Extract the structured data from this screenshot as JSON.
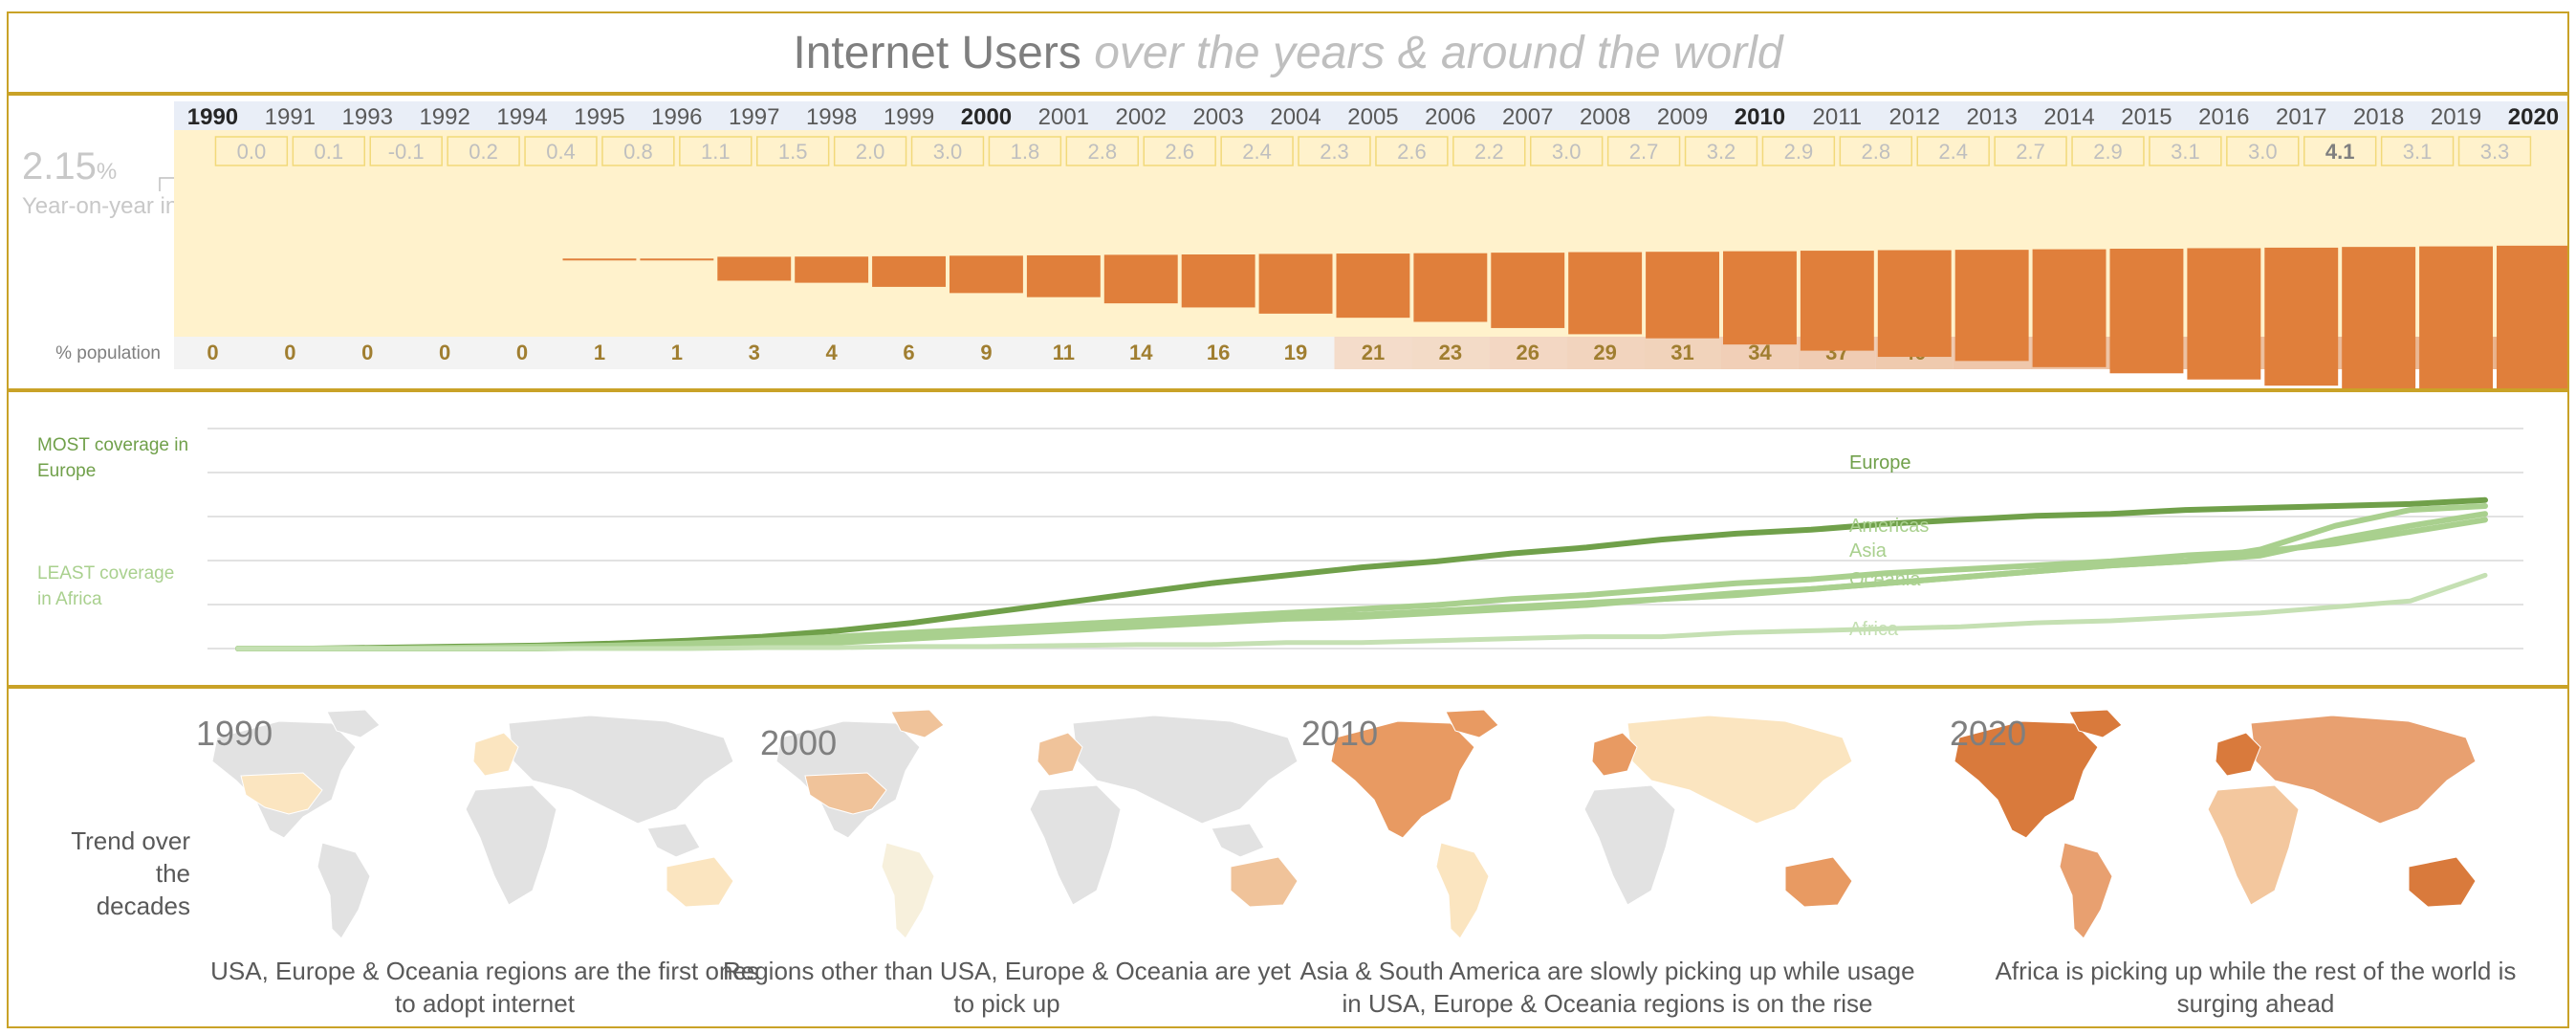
{
  "title": {
    "main": "Internet Users",
    "subtitle": "over the years & around the world"
  },
  "headline": {
    "value": "2.15",
    "unit": "%",
    "label": "Year-on-year increase"
  },
  "row_label": "% population",
  "colors": {
    "accent": "#e07f3b",
    "band": "#fff2cc",
    "header_bg": "#e9eef7",
    "frame": "#c9a227",
    "europe": "#70a04a",
    "region_light": "#a9d08e",
    "africa": "#c5e0b3"
  },
  "chart_data": [
    {
      "type": "bar",
      "title": "",
      "categories": [
        "1990",
        "1991",
        "1993",
        "1992",
        "1994",
        "1995",
        "1996",
        "1997",
        "1998",
        "1999",
        "2000",
        "2001",
        "2002",
        "2003",
        "2004",
        "2005",
        "2006",
        "2007",
        "2008",
        "2009",
        "2010",
        "2011",
        "2012",
        "2013",
        "2014",
        "2015",
        "2016",
        "2017",
        "2018",
        "2019",
        "2020"
      ],
      "bold_categories": [
        "1990",
        "2000",
        "2010",
        "2020"
      ],
      "yoy_increase": [
        "0.0",
        "0.1",
        "-0.1",
        "0.2",
        "0.4",
        "0.8",
        "1.1",
        "1.5",
        "2.0",
        "3.0",
        "1.8",
        "2.8",
        "2.6",
        "2.4",
        "2.3",
        "2.6",
        "2.2",
        "3.0",
        "2.7",
        "3.2",
        "2.9",
        "2.8",
        "2.4",
        "2.7",
        "2.9",
        "3.1",
        "3.0",
        "4.1",
        "3.1",
        "3.3"
      ],
      "yoy_highlight": "4.1",
      "values": [
        0,
        0,
        0,
        0,
        0,
        1,
        1,
        3,
        4,
        6,
        9,
        11,
        14,
        16,
        19,
        21,
        23,
        26,
        29,
        31,
        34,
        37,
        40,
        42,
        45,
        48,
        51,
        54,
        58,
        61,
        65
      ],
      "ylabel": "% population",
      "ylim": [
        0,
        65
      ]
    },
    {
      "type": "line",
      "title": "",
      "x": [
        1990,
        1991,
        1992,
        1993,
        1994,
        1995,
        1996,
        1997,
        1998,
        1999,
        2000,
        2001,
        2002,
        2003,
        2004,
        2005,
        2006,
        2007,
        2008,
        2009,
        2010,
        2011,
        2012,
        2013,
        2014,
        2015,
        2016,
        2017,
        2018,
        2019,
        2020
      ],
      "ylim": [
        0,
        100
      ],
      "grid": true,
      "series": [
        {
          "name": "Europe",
          "color": "#70a04a",
          "values": [
            0,
            0,
            0.5,
            1,
            1.5,
            2.5,
            4,
            6,
            9,
            13,
            18,
            23,
            28,
            33,
            37,
            41,
            44,
            48,
            51,
            55,
            58,
            60,
            63,
            65,
            67,
            68,
            70,
            71,
            72,
            73,
            75
          ]
        },
        {
          "name": "Americas",
          "color": "#a9d08e",
          "values": [
            0,
            0,
            0,
            0.5,
            1,
            1.5,
            2.5,
            4,
            6,
            8,
            10,
            12,
            14,
            16,
            18,
            20,
            22,
            25,
            27,
            30,
            33,
            35,
            38,
            40,
            42,
            44,
            47,
            49,
            53,
            59,
            65
          ]
        },
        {
          "name": "Asia",
          "color": "#a9d08e",
          "values": [
            0,
            0,
            0,
            0,
            0,
            0.5,
            1,
            2,
            3,
            5,
            7,
            9,
            11,
            13,
            15,
            16,
            18,
            20,
            22,
            25,
            28,
            30,
            33,
            36,
            39,
            42,
            44,
            47,
            55,
            62,
            68
          ]
        },
        {
          "name": "Oceania",
          "color": "#a9d08e",
          "values": [
            0,
            0,
            0,
            0,
            0.5,
            1,
            1.5,
            2.5,
            4,
            6,
            8,
            10,
            12,
            14,
            16,
            17,
            19,
            21,
            23,
            25,
            27,
            30,
            33,
            36,
            39,
            42,
            44,
            50,
            62,
            70,
            72
          ]
        },
        {
          "name": "Africa",
          "color": "#c5e0b3",
          "values": [
            0,
            0,
            0,
            0,
            0,
            0,
            0,
            0.5,
            0.5,
            1,
            1,
            1.5,
            2,
            2,
            3,
            3,
            4,
            5,
            6,
            6,
            8,
            9,
            10,
            11,
            13,
            14,
            16,
            18,
            21,
            24,
            37
          ]
        }
      ]
    }
  ],
  "line_notes": {
    "most": "MOST coverage in Europe",
    "least": "LEAST coverage in Africa"
  },
  "maps": {
    "row_label": "Trend over the decades",
    "items": [
      {
        "year": "1990",
        "caption": "USA, Europe & Oceania regions are the first ones to adopt internet"
      },
      {
        "year": "2000",
        "caption": "Regions other than USA, Europe & Oceania are yet to pick up"
      },
      {
        "year": "2010",
        "caption": "Asia & South America are slowly picking up while usage in USA, Europe & Oceania regions is on the rise"
      },
      {
        "year": "2020",
        "caption": "Africa is picking up while the rest of the world is surging ahead"
      }
    ]
  }
}
